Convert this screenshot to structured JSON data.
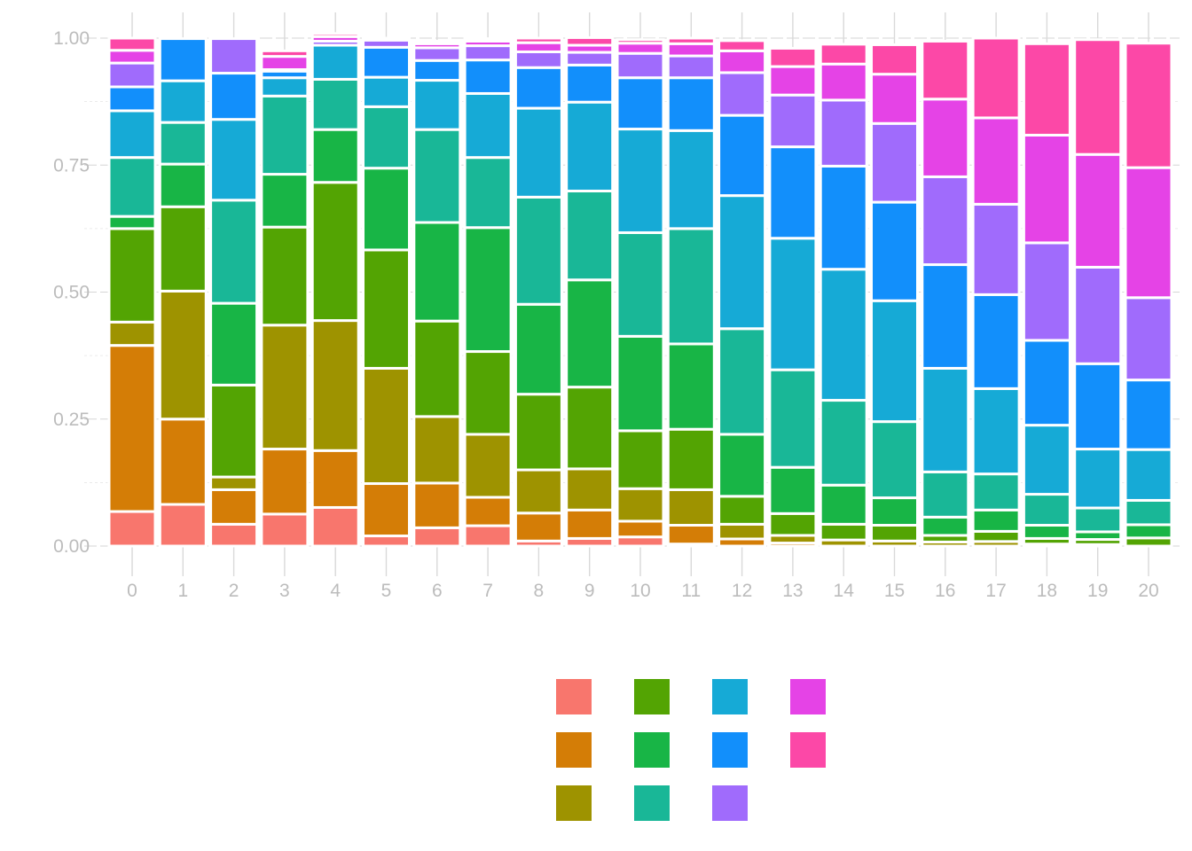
{
  "chart_data": {
    "type": "bar",
    "stacked": "fill",
    "title": "",
    "xlabel": "",
    "ylabel": "",
    "ylim": [
      0,
      1
    ],
    "y_ticks": [
      "0.00",
      "0.25",
      "0.50",
      "0.75",
      "1.00"
    ],
    "categories": [
      "0",
      "1",
      "2",
      "3",
      "4",
      "5",
      "6",
      "7",
      "8",
      "9",
      "10",
      "11",
      "12",
      "13",
      "14",
      "15",
      "16",
      "17",
      "18",
      "19",
      "20"
    ],
    "grid": true,
    "legend_position": "bottom",
    "series": [
      {
        "color": "#F8766D",
        "values": [
          0.068,
          0.082,
          0.043,
          0.063,
          0.076,
          0.02,
          0.036,
          0.04,
          0.01,
          0.015,
          0.018,
          0.004,
          0.0,
          0.0,
          0.0,
          0.0,
          0.0,
          0.0,
          0.0,
          0.0,
          0.0
        ]
      },
      {
        "color": "#D47D06",
        "values": [
          0.327,
          0.168,
          0.068,
          0.128,
          0.112,
          0.103,
          0.088,
          0.056,
          0.055,
          0.056,
          0.031,
          0.037,
          0.014,
          0.006,
          0.0,
          0.0,
          0.0,
          0.0,
          0.0,
          0.0,
          0.0
        ]
      },
      {
        "color": "#9E9300",
        "values": [
          0.046,
          0.252,
          0.025,
          0.244,
          0.256,
          0.227,
          0.131,
          0.124,
          0.085,
          0.081,
          0.064,
          0.07,
          0.029,
          0.015,
          0.012,
          0.01,
          0.008,
          0.009,
          0.004,
          0.003,
          0.0
        ]
      },
      {
        "color": "#53A403",
        "values": [
          0.184,
          0.166,
          0.181,
          0.193,
          0.272,
          0.233,
          0.188,
          0.163,
          0.149,
          0.161,
          0.114,
          0.119,
          0.055,
          0.043,
          0.031,
          0.031,
          0.013,
          0.02,
          0.011,
          0.01,
          0.016
        ]
      },
      {
        "color": "#18B546",
        "values": [
          0.024,
          0.084,
          0.161,
          0.104,
          0.104,
          0.161,
          0.194,
          0.244,
          0.177,
          0.211,
          0.186,
          0.168,
          0.122,
          0.091,
          0.077,
          0.054,
          0.036,
          0.042,
          0.026,
          0.015,
          0.026
        ]
      },
      {
        "color": "#19B797",
        "values": [
          0.116,
          0.082,
          0.203,
          0.154,
          0.099,
          0.121,
          0.183,
          0.138,
          0.211,
          0.175,
          0.204,
          0.227,
          0.208,
          0.192,
          0.167,
          0.15,
          0.089,
          0.071,
          0.061,
          0.047,
          0.048
        ]
      },
      {
        "color": "#16AAD6",
        "values": [
          0.092,
          0.082,
          0.159,
          0.036,
          0.067,
          0.058,
          0.097,
          0.126,
          0.175,
          0.175,
          0.204,
          0.193,
          0.262,
          0.259,
          0.258,
          0.238,
          0.204,
          0.168,
          0.136,
          0.116,
          0.1
        ]
      },
      {
        "color": "#128FFB",
        "values": [
          0.047,
          0.083,
          0.091,
          0.013,
          0.0,
          0.059,
          0.039,
          0.066,
          0.08,
          0.073,
          0.101,
          0.104,
          0.158,
          0.18,
          0.203,
          0.194,
          0.204,
          0.185,
          0.167,
          0.168,
          0.137
        ]
      },
      {
        "color": "#A06BFC",
        "values": [
          0.047,
          0.0,
          0.068,
          0.003,
          0.008,
          0.014,
          0.025,
          0.028,
          0.031,
          0.025,
          0.048,
          0.043,
          0.084,
          0.102,
          0.13,
          0.155,
          0.173,
          0.178,
          0.192,
          0.19,
          0.162
        ]
      },
      {
        "color": "#E543E6",
        "values": [
          0.025,
          0.0,
          0.0,
          0.026,
          0.009,
          0.004,
          0.008,
          0.009,
          0.018,
          0.014,
          0.02,
          0.024,
          0.043,
          0.056,
          0.071,
          0.097,
          0.153,
          0.17,
          0.212,
          0.222,
          0.256
        ]
      },
      {
        "color": "#FC48A7",
        "values": [
          0.024,
          0.0,
          0.0,
          0.011,
          0.006,
          0.0,
          0.005,
          0.005,
          0.009,
          0.015,
          0.007,
          0.011,
          0.02,
          0.036,
          0.039,
          0.058,
          0.114,
          0.157,
          0.18,
          0.226,
          0.245
        ]
      }
    ]
  }
}
